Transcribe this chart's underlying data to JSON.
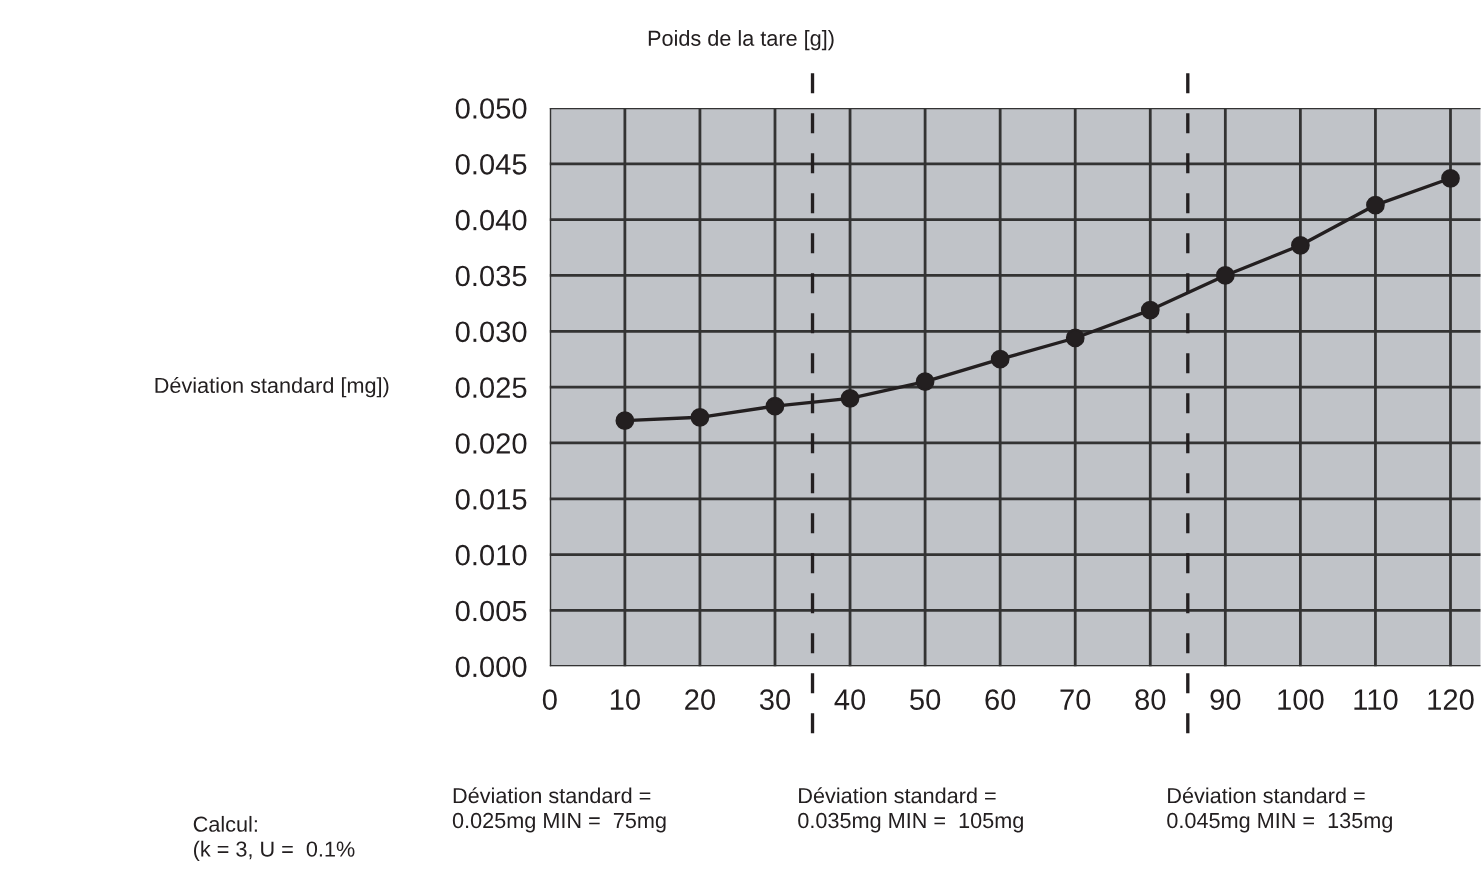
{
  "chart_data": {
    "type": "line",
    "title": "Poids de la tare [g])",
    "ylabel": "Déviation standard [mg])",
    "x": [
      10,
      20,
      30,
      40,
      50,
      60,
      70,
      80,
      90,
      100,
      110,
      120
    ],
    "series": [
      {
        "color": "#231f20",
        "values": [
          0.022,
          0.0223,
          0.0233,
          0.024,
          0.0255,
          0.0275,
          0.0294,
          0.0319,
          0.035,
          0.0377,
          0.0413,
          0.0437
        ]
      }
    ],
    "marker": "circle",
    "line_style": "solid",
    "grid": true,
    "xlim": [
      0,
      124
    ],
    "xticks": [
      0,
      10,
      20,
      30,
      40,
      50,
      60,
      70,
      80,
      90,
      100,
      110,
      120
    ],
    "ylim": [
      0,
      0.05
    ],
    "yticks": [
      {
        "value": 0,
        "label": "0.000"
      },
      {
        "value": 0.005,
        "label": "0.005"
      },
      {
        "value": 0.01,
        "label": "0.010"
      },
      {
        "value": 0.015,
        "label": "0.015"
      },
      {
        "value": 0.02,
        "label": "0.020"
      },
      {
        "value": 0.025,
        "label": "0.025"
      },
      {
        "value": 0.03,
        "label": "0.030"
      },
      {
        "value": 0.035,
        "label": "0.035"
      },
      {
        "value": 0.04,
        "label": "0.040"
      },
      {
        "value": 0.045,
        "label": "0.045"
      },
      {
        "value": 0.05,
        "label": "0.050"
      }
    ],
    "ref_lines": [
      {
        "axis": "x",
        "value": 35,
        "color": "#231f20",
        "line_style": "dashed"
      },
      {
        "axis": "x",
        "value": 85,
        "color": "#231f20",
        "line_style": "dashed"
      }
    ],
    "annotations": [
      "Calcul:\n(k = 3, U =  0.1%",
      "Déviation standard =\n0.025mg MIN =  75mg",
      "Déviation standard =\n0.035mg MIN =  105mg",
      "Déviation standard =\n0.045mg MIN =  135mg"
    ]
  }
}
